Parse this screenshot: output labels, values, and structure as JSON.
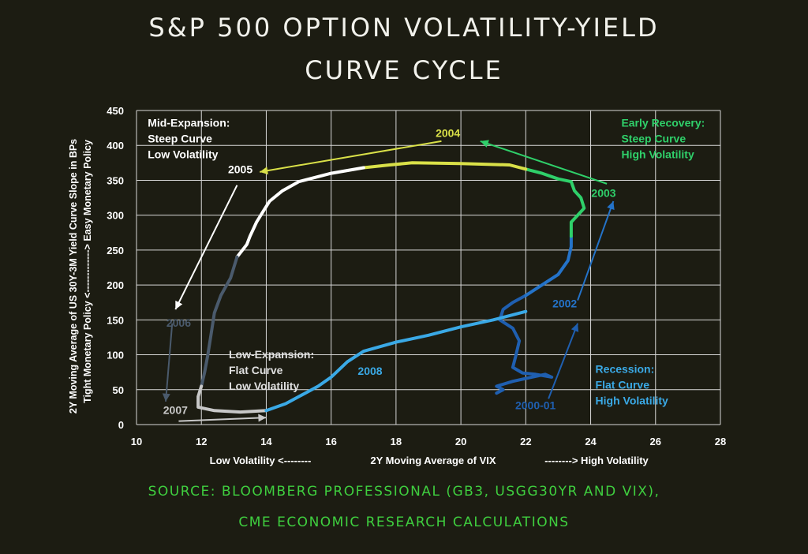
{
  "header": {
    "title_line1": "S&P 500 OPTION VOLATILITY-YIELD",
    "title_line2": "CURVE CYCLE"
  },
  "footer": {
    "source_line1": "SOURCE: BLOOMBERG PROFESSIONAL (GB3, USGG30YR AND VIX),",
    "source_line2": "CME ECONOMIC RESEARCH CALCULATIONS"
  },
  "chart_data": {
    "type": "line",
    "xlabel": "2Y Moving Average of VIX",
    "xlabel_left": "Low Volatility <--------",
    "xlabel_right": "--------> High Volatility",
    "ylabel_line1": "2Y Moving Average of US 30Y-3M Yield Curve Slope in BPs",
    "ylabel_line2": "Tight Monetary Policy <-------------> Easy Monetary Policy",
    "xlim": [
      10,
      28
    ],
    "ylim": [
      0,
      450
    ],
    "xticks": [
      "10",
      "12",
      "14",
      "16",
      "18",
      "20",
      "22",
      "24",
      "26",
      "28"
    ],
    "yticks": [
      "0",
      "50",
      "100",
      "150",
      "200",
      "250",
      "300",
      "350",
      "400",
      "450"
    ],
    "grid": true,
    "series": [
      {
        "name": "2000-01",
        "color": "#1f5fb0",
        "points": [
          [
            21.1,
            45
          ],
          [
            21.3,
            50
          ],
          [
            21.1,
            55
          ],
          [
            21.6,
            62
          ],
          [
            22.1,
            67
          ],
          [
            22.6,
            72
          ],
          [
            22.8,
            68
          ],
          [
            22.3,
            72
          ],
          [
            21.9,
            74
          ],
          [
            21.6,
            82
          ],
          [
            21.7,
            100
          ],
          [
            21.8,
            120
          ],
          [
            21.6,
            138
          ],
          [
            21.2,
            150
          ],
          [
            21.3,
            165
          ],
          [
            21.6,
            175
          ],
          [
            22.0,
            185
          ]
        ]
      },
      {
        "name": "2002",
        "color": "#2473c9",
        "points": [
          [
            22.0,
            185
          ],
          [
            22.5,
            200
          ],
          [
            23.0,
            215
          ],
          [
            23.3,
            235
          ],
          [
            23.4,
            255
          ],
          [
            23.4,
            270
          ]
        ]
      },
      {
        "name": "2003",
        "color": "#2fd06a",
        "points": [
          [
            23.4,
            270
          ],
          [
            23.4,
            290
          ],
          [
            23.6,
            300
          ],
          [
            23.8,
            310
          ],
          [
            23.7,
            325
          ],
          [
            23.5,
            335
          ],
          [
            23.4,
            348
          ],
          [
            23.0,
            352
          ],
          [
            22.5,
            360
          ],
          [
            22.0,
            366
          ]
        ]
      },
      {
        "name": "2004",
        "color": "#d9e048",
        "points": [
          [
            22.0,
            366
          ],
          [
            21.5,
            372
          ],
          [
            20.0,
            374
          ],
          [
            18.5,
            375
          ],
          [
            17.8,
            372
          ],
          [
            17.0,
            368
          ]
        ]
      },
      {
        "name": "2005",
        "color": "#ffffff",
        "points": [
          [
            17.0,
            368
          ],
          [
            16.0,
            360
          ],
          [
            15.0,
            348
          ],
          [
            14.5,
            335
          ],
          [
            14.1,
            320
          ],
          [
            13.9,
            305
          ],
          [
            13.7,
            290
          ],
          [
            13.6,
            280
          ],
          [
            13.5,
            270
          ],
          [
            13.4,
            258
          ],
          [
            13.1,
            240
          ]
        ]
      },
      {
        "name": "2006",
        "color": "#4a5a6c",
        "points": [
          [
            13.1,
            240
          ],
          [
            12.9,
            210
          ],
          [
            12.6,
            185
          ],
          [
            12.4,
            160
          ],
          [
            12.3,
            130
          ],
          [
            12.2,
            100
          ],
          [
            12.1,
            75
          ],
          [
            12.0,
            55
          ]
        ]
      },
      {
        "name": "2007",
        "color": "#c8c8c8",
        "points": [
          [
            12.0,
            55
          ],
          [
            11.9,
            40
          ],
          [
            11.9,
            25
          ],
          [
            12.4,
            20
          ],
          [
            13.2,
            18
          ],
          [
            14.0,
            20
          ]
        ]
      },
      {
        "name": "2008",
        "color": "#3aa9e6",
        "points": [
          [
            14.0,
            20
          ],
          [
            14.6,
            30
          ],
          [
            15.2,
            45
          ],
          [
            15.6,
            55
          ],
          [
            16.0,
            68
          ],
          [
            16.5,
            90
          ],
          [
            17.0,
            105
          ],
          [
            18.0,
            118
          ],
          [
            19.0,
            128
          ],
          [
            20.0,
            140
          ],
          [
            21.0,
            150
          ],
          [
            22.0,
            162
          ]
        ]
      }
    ],
    "annotations": [
      {
        "text": "2004",
        "color": "#d9e048",
        "x": 19.6,
        "y": 412
      },
      {
        "text": "2005",
        "color": "#ffffff",
        "x": 13.2,
        "y": 360
      },
      {
        "text": "2003",
        "color": "#2fd06a",
        "x": 24.4,
        "y": 326
      },
      {
        "text": "2002",
        "color": "#2473c9",
        "x": 23.2,
        "y": 168
      },
      {
        "text": "2000-01",
        "color": "#1f5fb0",
        "x": 22.3,
        "y": 22
      },
      {
        "text": "2006",
        "color": "#4a5a6c",
        "x": 11.3,
        "y": 140
      },
      {
        "text": "2007",
        "color": "#c8c8c8",
        "x": 11.2,
        "y": 15
      },
      {
        "text": "2008",
        "color": "#3aa9e6",
        "x": 17.2,
        "y": 71
      }
    ],
    "arrows": [
      {
        "color": "#d9e048",
        "from": [
          19.4,
          406
        ],
        "to": [
          13.8,
          362
        ]
      },
      {
        "color": "#2fd06a",
        "from": [
          24.5,
          345
        ],
        "to": [
          20.6,
          406
        ]
      },
      {
        "color": "#2473c9",
        "from": [
          23.6,
          178
        ],
        "to": [
          24.7,
          320
        ]
      },
      {
        "color": "#1f5fb0",
        "from": [
          22.7,
          37
        ],
        "to": [
          23.6,
          145
        ]
      },
      {
        "color": "#ffffff",
        "from": [
          13.1,
          343
        ],
        "to": [
          11.2,
          165
        ]
      },
      {
        "color": "#4a5a6c",
        "from": [
          11.1,
          145
        ],
        "to": [
          10.9,
          33
        ]
      },
      {
        "color": "#c8c8c8",
        "from": [
          11.3,
          5
        ],
        "to": [
          14.0,
          10
        ]
      }
    ],
    "quadrant_labels": [
      {
        "name": "mid-expansion",
        "lines": [
          "Mid-Expansion:",
          "Steep Curve",
          "Low Volatility"
        ],
        "color": "#ffffff",
        "x": 10.2,
        "y": 436
      },
      {
        "name": "early-recovery",
        "lines": [
          "Early Recovery:",
          "Steep Curve",
          "High Volatility"
        ],
        "color": "#2fd06a",
        "x": 24.8,
        "y": 436
      },
      {
        "name": "low-expansion",
        "lines": [
          "Low-Expansion:",
          "Flat Curve",
          "Low Volatility"
        ],
        "color": "#e0e0e0",
        "x": 12.7,
        "y": 104
      },
      {
        "name": "recession",
        "lines": [
          "Recession:",
          "Flat Curve",
          "High Volatility"
        ],
        "color": "#3aa9e6",
        "x": 24.0,
        "y": 83
      }
    ]
  }
}
